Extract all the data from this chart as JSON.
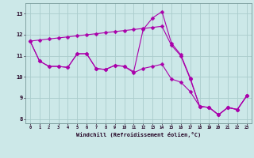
{
  "xlabel": "Windchill (Refroidissement éolien,°C)",
  "bg_color": "#cce8e8",
  "line_color": "#aa00aa",
  "grid_color": "#aacccc",
  "x_hours": [
    0,
    1,
    2,
    3,
    4,
    5,
    6,
    7,
    8,
    9,
    10,
    11,
    12,
    13,
    14,
    15,
    16,
    17,
    18,
    19,
    20,
    21,
    22,
    23
  ],
  "line1_y": [
    11.7,
    11.75,
    11.8,
    11.85,
    11.9,
    11.95,
    12.0,
    12.05,
    12.1,
    12.15,
    12.2,
    12.25,
    12.3,
    12.35,
    12.4,
    11.5,
    11.0,
    9.9,
    8.6,
    8.55,
    8.2,
    8.55,
    8.45,
    9.1
  ],
  "line2_y": [
    11.7,
    10.75,
    10.5,
    10.5,
    10.45,
    11.1,
    11.1,
    10.4,
    10.35,
    10.55,
    10.5,
    10.25,
    12.25,
    12.8,
    13.1,
    11.6,
    11.05,
    9.95,
    8.6,
    8.55,
    8.2,
    8.55,
    8.45,
    9.1
  ],
  "line3_y": [
    11.7,
    10.75,
    10.5,
    10.5,
    10.45,
    11.1,
    11.1,
    10.4,
    10.35,
    10.55,
    10.5,
    10.2,
    10.4,
    10.5,
    10.6,
    9.9,
    9.75,
    9.3,
    8.6,
    8.55,
    8.2,
    8.55,
    8.45,
    9.1
  ],
  "ylim": [
    7.8,
    13.5
  ],
  "yticks": [
    8,
    9,
    10,
    11,
    12,
    13
  ],
  "xlim": [
    -0.5,
    23.5
  ],
  "xticks": [
    0,
    1,
    2,
    3,
    4,
    5,
    6,
    7,
    8,
    9,
    10,
    11,
    12,
    13,
    14,
    15,
    16,
    17,
    18,
    19,
    20,
    21,
    22,
    23
  ],
  "markersize": 2.5,
  "linewidth": 0.8
}
